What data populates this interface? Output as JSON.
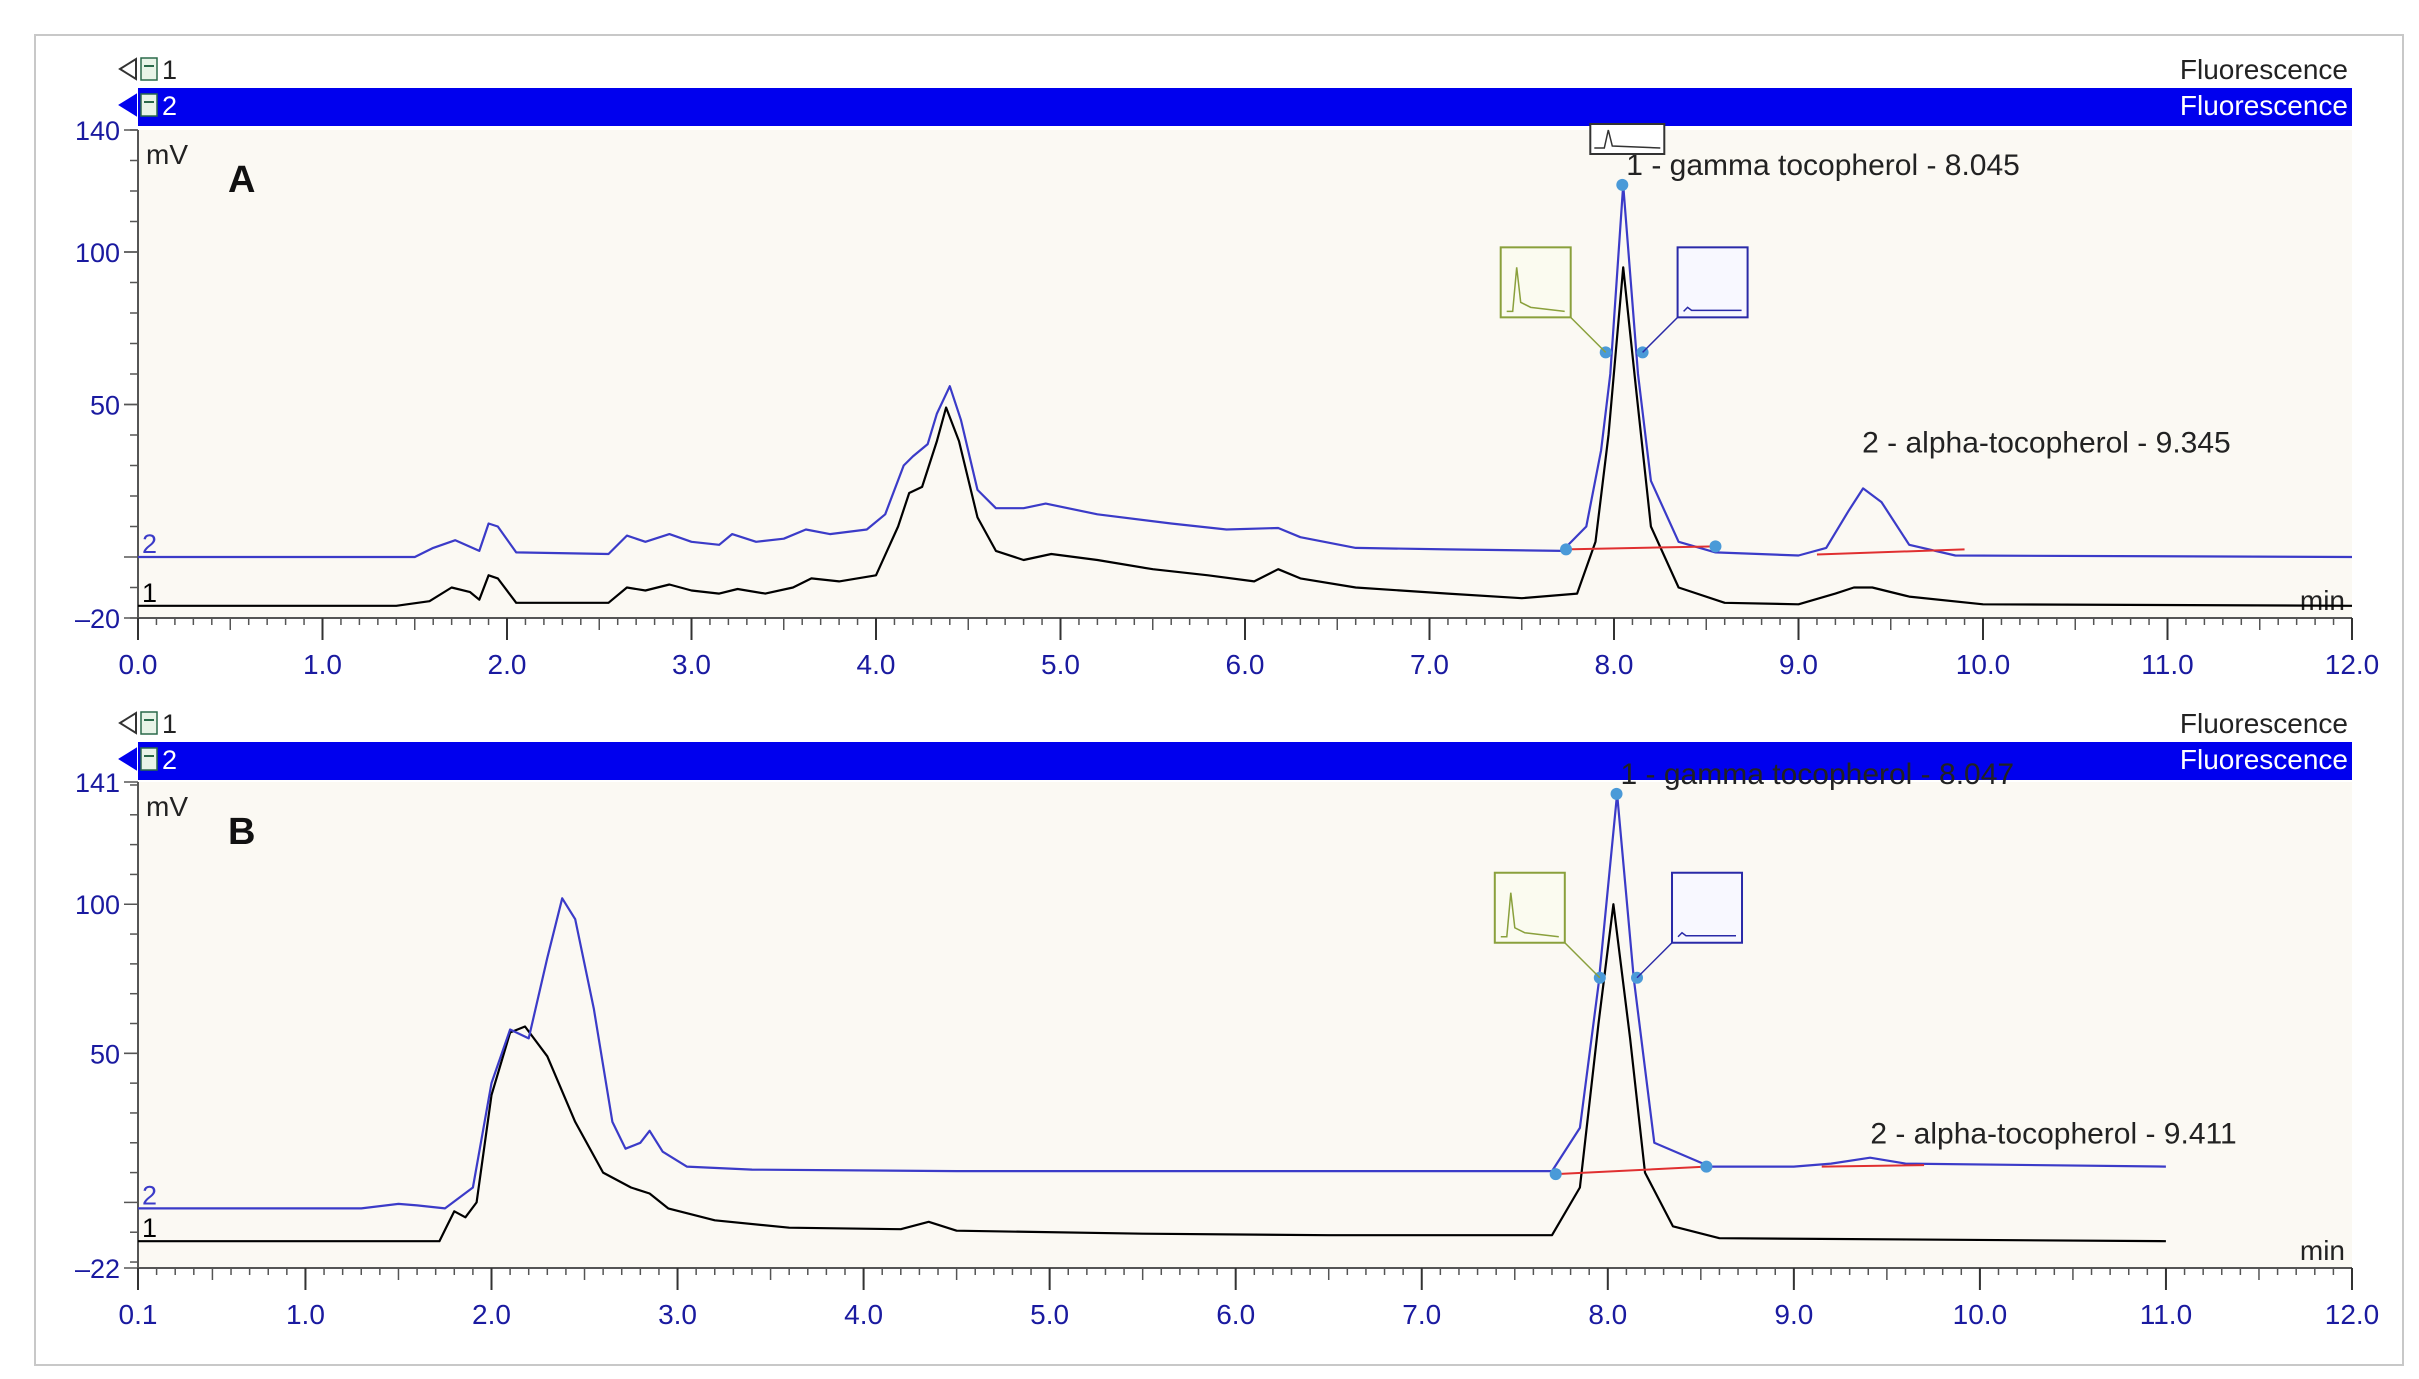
{
  "chart_data": [
    {
      "type": "line",
      "panel_label": "A",
      "y_unit": "mV",
      "x_unit": "min",
      "xlim": [
        0.0,
        12.0
      ],
      "ylim": [
        -20,
        140
      ],
      "x_tick_labels": [
        "0.0",
        "1.0",
        "2.0",
        "3.0",
        "4.0",
        "5.0",
        "6.0",
        "7.0",
        "8.0",
        "9.0",
        "10.0",
        "11.0",
        "12.0"
      ],
      "y_tick_labels": [
        "140",
        "100",
        "50",
        "-20"
      ],
      "traces": [
        {
          "id": "1",
          "detector": "Fluorescence",
          "color": "#000000"
        },
        {
          "id": "2",
          "detector": "Fluorescence",
          "color": "#3b3bc8"
        }
      ],
      "series": [
        {
          "name": "1",
          "points": [
            [
              0.0,
              -16
            ],
            [
              1.4,
              -16
            ],
            [
              1.58,
              -14.5
            ],
            [
              1.7,
              -10
            ],
            [
              1.8,
              -11.5
            ],
            [
              1.85,
              -14
            ],
            [
              1.9,
              -6
            ],
            [
              1.95,
              -7
            ],
            [
              2.05,
              -15
            ],
            [
              2.55,
              -15
            ],
            [
              2.65,
              -10
            ],
            [
              2.75,
              -11
            ],
            [
              2.88,
              -9
            ],
            [
              3.0,
              -11
            ],
            [
              3.15,
              -12
            ],
            [
              3.25,
              -10.5
            ],
            [
              3.4,
              -12
            ],
            [
              3.55,
              -10
            ],
            [
              3.65,
              -7
            ],
            [
              3.8,
              -8
            ],
            [
              4.0,
              -6
            ],
            [
              4.12,
              10
            ],
            [
              4.18,
              21
            ],
            [
              4.25,
              23
            ],
            [
              4.33,
              38
            ],
            [
              4.38,
              49
            ],
            [
              4.45,
              38
            ],
            [
              4.55,
              13
            ],
            [
              4.65,
              2
            ],
            [
              4.8,
              -1
            ],
            [
              4.95,
              1
            ],
            [
              5.2,
              -1
            ],
            [
              5.5,
              -4
            ],
            [
              5.8,
              -6
            ],
            [
              6.05,
              -8
            ],
            [
              6.18,
              -4
            ],
            [
              6.3,
              -7
            ],
            [
              6.6,
              -10
            ],
            [
              7.1,
              -12
            ],
            [
              7.5,
              -13.5
            ],
            [
              7.8,
              -12
            ],
            [
              7.9,
              5
            ],
            [
              7.97,
              40
            ],
            [
              8.05,
              95
            ],
            [
              8.12,
              55
            ],
            [
              8.2,
              10
            ],
            [
              8.35,
              -10
            ],
            [
              8.6,
              -15
            ],
            [
              9.0,
              -15.5
            ],
            [
              9.2,
              -12
            ],
            [
              9.3,
              -10
            ],
            [
              9.4,
              -10
            ],
            [
              9.6,
              -13
            ],
            [
              10.0,
              -15.5
            ],
            [
              12.0,
              -16
            ]
          ]
        },
        {
          "name": "2",
          "points": [
            [
              0.0,
              0
            ],
            [
              1.5,
              0
            ],
            [
              1.6,
              3
            ],
            [
              1.72,
              5.5
            ],
            [
              1.85,
              2
            ],
            [
              1.9,
              11
            ],
            [
              1.95,
              10
            ],
            [
              2.05,
              1.5
            ],
            [
              2.55,
              1
            ],
            [
              2.65,
              7
            ],
            [
              2.75,
              5
            ],
            [
              2.88,
              7.5
            ],
            [
              3.0,
              5
            ],
            [
              3.15,
              4
            ],
            [
              3.22,
              7.5
            ],
            [
              3.35,
              5
            ],
            [
              3.5,
              6
            ],
            [
              3.62,
              9
            ],
            [
              3.75,
              7.5
            ],
            [
              3.95,
              9
            ],
            [
              4.05,
              14
            ],
            [
              4.15,
              30
            ],
            [
              4.2,
              33
            ],
            [
              4.28,
              37
            ],
            [
              4.33,
              47
            ],
            [
              4.4,
              56
            ],
            [
              4.46,
              45
            ],
            [
              4.55,
              22
            ],
            [
              4.65,
              16
            ],
            [
              4.8,
              16
            ],
            [
              4.92,
              17.5
            ],
            [
              5.2,
              14
            ],
            [
              5.6,
              11
            ],
            [
              5.9,
              9
            ],
            [
              6.18,
              9.5
            ],
            [
              6.3,
              6.5
            ],
            [
              6.6,
              3
            ],
            [
              7.1,
              2.5
            ],
            [
              7.72,
              2
            ],
            [
              7.85,
              10
            ],
            [
              7.93,
              35
            ],
            [
              7.98,
              60
            ],
            [
              8.05,
              122
            ],
            [
              8.13,
              60
            ],
            [
              8.2,
              25
            ],
            [
              8.35,
              5
            ],
            [
              8.55,
              1.5
            ],
            [
              9.0,
              0.5
            ],
            [
              9.15,
              3
            ],
            [
              9.27,
              15
            ],
            [
              9.35,
              22.5
            ],
            [
              9.45,
              18
            ],
            [
              9.6,
              4
            ],
            [
              9.85,
              0.5
            ],
            [
              12.0,
              0
            ]
          ]
        }
      ],
      "baselines": [
        {
          "x": [
            7.74,
            8.55
          ],
          "y": [
            2.5,
            3.5
          ]
        },
        {
          "x": [
            9.1,
            9.9
          ],
          "y": [
            0.8,
            2.5
          ]
        }
      ],
      "peaks": [
        {
          "label": "1 - gamma tocopherol - 8.045",
          "x": 8.045,
          "y": 122
        },
        {
          "label": "2 - alpha-tocopherol - 9.345",
          "x": 9.345,
          "y": 22.5
        }
      ]
    },
    {
      "type": "line",
      "panel_label": "B",
      "y_unit": "mV",
      "x_unit": "min",
      "xlim": [
        0.1,
        12.0
      ],
      "ylim": [
        -22,
        141
      ],
      "x_tick_labels": [
        "0.1",
        "1.0",
        "2.0",
        "3.0",
        "4.0",
        "5.0",
        "6.0",
        "7.0",
        "8.0",
        "9.0",
        "10.0",
        "11.0",
        "12.0"
      ],
      "y_tick_labels": [
        "141",
        "100",
        "50",
        "-22"
      ],
      "traces": [
        {
          "id": "1",
          "detector": "Fluorescence",
          "color": "#000000"
        },
        {
          "id": "2",
          "detector": "Fluorescence",
          "color": "#3b3bc8"
        }
      ],
      "series": [
        {
          "name": "1",
          "points": [
            [
              0.1,
              -13
            ],
            [
              1.72,
              -13
            ],
            [
              1.76,
              -8
            ],
            [
              1.8,
              -3
            ],
            [
              1.86,
              -5
            ],
            [
              1.92,
              0
            ],
            [
              2.0,
              36
            ],
            [
              2.1,
              57
            ],
            [
              2.18,
              59
            ],
            [
              2.3,
              49
            ],
            [
              2.45,
              27
            ],
            [
              2.6,
              10
            ],
            [
              2.75,
              5
            ],
            [
              2.85,
              3
            ],
            [
              2.95,
              -2
            ],
            [
              3.2,
              -6
            ],
            [
              3.6,
              -8.5
            ],
            [
              4.2,
              -9
            ],
            [
              4.35,
              -6.5
            ],
            [
              4.5,
              -9.5
            ],
            [
              5.5,
              -10.5
            ],
            [
              6.5,
              -11
            ],
            [
              7.7,
              -11
            ],
            [
              7.85,
              5
            ],
            [
              7.95,
              60
            ],
            [
              8.03,
              100
            ],
            [
              8.12,
              55
            ],
            [
              8.2,
              10
            ],
            [
              8.35,
              -8
            ],
            [
              8.6,
              -12
            ],
            [
              11.0,
              -13
            ]
          ]
        },
        {
          "name": "2",
          "points": [
            [
              0.1,
              -2
            ],
            [
              1.3,
              -2
            ],
            [
              1.5,
              -0.5
            ],
            [
              1.6,
              -1
            ],
            [
              1.75,
              -2
            ],
            [
              1.9,
              5
            ],
            [
              2.0,
              40
            ],
            [
              2.1,
              58
            ],
            [
              2.2,
              55
            ],
            [
              2.3,
              82
            ],
            [
              2.38,
              102
            ],
            [
              2.45,
              95
            ],
            [
              2.55,
              65
            ],
            [
              2.65,
              27
            ],
            [
              2.72,
              18
            ],
            [
              2.8,
              20
            ],
            [
              2.85,
              24
            ],
            [
              2.92,
              17
            ],
            [
              3.05,
              12
            ],
            [
              3.4,
              11
            ],
            [
              4.5,
              10.5
            ],
            [
              6.5,
              10.5
            ],
            [
              7.7,
              10.5
            ],
            [
              7.85,
              25
            ],
            [
              7.95,
              73
            ],
            [
              8.05,
              137
            ],
            [
              8.14,
              75
            ],
            [
              8.25,
              20
            ],
            [
              8.55,
              12
            ],
            [
              9.0,
              12
            ],
            [
              9.2,
              13
            ],
            [
              9.41,
              15
            ],
            [
              9.6,
              13
            ],
            [
              11.0,
              12
            ]
          ]
        }
      ],
      "baselines": [
        {
          "x": [
            7.72,
            8.53
          ],
          "y": [
            9.5,
            12
          ]
        },
        {
          "x": [
            9.15,
            9.7
          ],
          "y": [
            12,
            12.5
          ]
        }
      ],
      "peaks": [
        {
          "label": "1 - gamma tocopherol - 8.047",
          "x": 8.047,
          "y": 137
        },
        {
          "label": "2 - alpha-tocopherol - 9.411",
          "x": 9.411,
          "y": 15
        }
      ]
    }
  ],
  "colors": {
    "trace_1": "#000000",
    "trace_2": "#3b3bc8",
    "baseline": "#e03030",
    "header_bar": "#0000ee",
    "plot_background": "#fbf9f3",
    "marker": "#4a9ad8",
    "inset_green": "#8aa03c",
    "inset_blue": "#2a2aa8"
  }
}
